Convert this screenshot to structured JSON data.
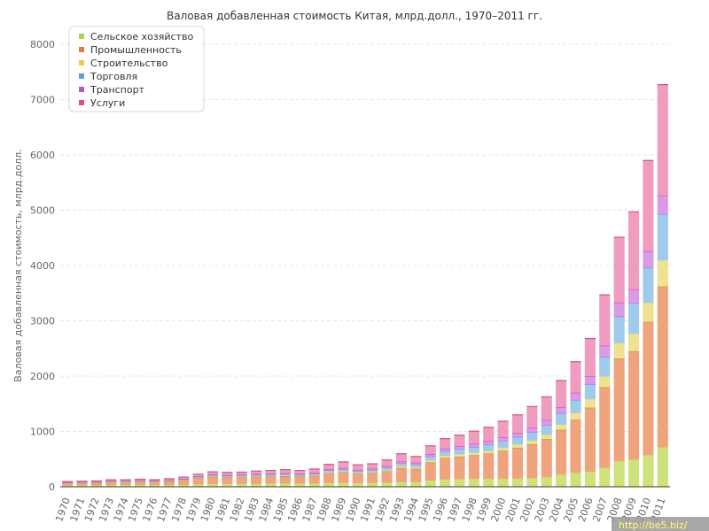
{
  "chart_data": {
    "type": "bar",
    "stacked": true,
    "title": "Валовая добавленная стоимость Китая, млрд.долл., 1970–2011 гг.",
    "ylabel": "Валовая добавленная стоимость, млрд.долл.",
    "xlabel": "",
    "ylim": [
      0,
      8000
    ],
    "yticks": [
      0,
      1000,
      2000,
      3000,
      4000,
      5000,
      6000,
      7000,
      8000
    ],
    "grid": true,
    "legend_position": "top-left",
    "categories": [
      "1970",
      "1971",
      "1972",
      "1973",
      "1974",
      "1975",
      "1976",
      "1977",
      "1978",
      "1979",
      "1980",
      "1981",
      "1982",
      "1983",
      "1984",
      "1985",
      "1986",
      "1987",
      "1988",
      "1989",
      "1990",
      "1991",
      "1992",
      "1993",
      "1994",
      "1995",
      "1996",
      "1997",
      "1998",
      "1999",
      "2000",
      "2001",
      "2002",
      "2003",
      "2004",
      "2005",
      "2006",
      "2007",
      "2008",
      "2009",
      "2010",
      "2011"
    ],
    "series": [
      {
        "name": "Сельское хозяйство",
        "color": "#cde27a",
        "stroke": "#b8cc55",
        "values": [
          30,
          32,
          33,
          37,
          38,
          40,
          39,
          40,
          45,
          55,
          60,
          60,
          62,
          63,
          66,
          67,
          65,
          67,
          75,
          80,
          75,
          78,
          80,
          90,
          95,
          120,
          140,
          145,
          150,
          150,
          150,
          155,
          165,
          180,
          230,
          260,
          280,
          350,
          470,
          500,
          580,
          720
        ]
      },
      {
        "name": "Промышленность",
        "color": "#f0a47d",
        "stroke": "#e07b4a",
        "values": [
          35,
          38,
          40,
          50,
          50,
          55,
          50,
          60,
          75,
          100,
          120,
          110,
          110,
          120,
          120,
          125,
          120,
          130,
          170,
          180,
          160,
          170,
          200,
          250,
          230,
          320,
          380,
          400,
          420,
          450,
          500,
          550,
          600,
          680,
          800,
          950,
          1150,
          1450,
          1850,
          1950,
          2400,
          2900
        ]
      },
      {
        "name": "Строительство",
        "color": "#eee190",
        "stroke": "#e5d04a",
        "values": [
          3,
          3,
          3,
          4,
          4,
          4,
          4,
          5,
          6,
          8,
          10,
          10,
          10,
          12,
          12,
          13,
          13,
          14,
          18,
          20,
          18,
          20,
          25,
          32,
          32,
          40,
          45,
          48,
          50,
          55,
          60,
          65,
          75,
          85,
          100,
          130,
          160,
          200,
          280,
          320,
          350,
          480
        ]
      },
      {
        "name": "Торговля",
        "color": "#9ecbec",
        "stroke": "#5b9fd6",
        "values": [
          8,
          8,
          8,
          10,
          10,
          10,
          10,
          10,
          12,
          15,
          20,
          20,
          22,
          24,
          25,
          27,
          25,
          27,
          35,
          40,
          35,
          38,
          45,
          55,
          50,
          70,
          80,
          90,
          100,
          110,
          120,
          130,
          150,
          170,
          200,
          230,
          260,
          350,
          480,
          550,
          630,
          830
        ]
      },
      {
        "name": "Транспорт",
        "color": "#d99ae8",
        "stroke": "#b855cf",
        "values": [
          4,
          4,
          4,
          5,
          5,
          5,
          5,
          5,
          6,
          8,
          10,
          10,
          10,
          11,
          12,
          12,
          12,
          13,
          17,
          20,
          18,
          20,
          25,
          30,
          30,
          40,
          45,
          50,
          55,
          60,
          65,
          70,
          80,
          90,
          110,
          130,
          150,
          200,
          250,
          250,
          300,
          330
        ]
      },
      {
        "name": "Услуги",
        "color": "#f09cc0",
        "stroke": "#dd4e8a",
        "values": [
          15,
          15,
          17,
          20,
          20,
          22,
          20,
          25,
          30,
          40,
          50,
          50,
          50,
          55,
          60,
          65,
          60,
          70,
          90,
          110,
          90,
          90,
          110,
          140,
          110,
          150,
          180,
          200,
          230,
          250,
          290,
          330,
          380,
          420,
          480,
          560,
          680,
          920,
          1180,
          1400,
          1640,
          2010
        ]
      }
    ]
  },
  "watermark": "http://be5.biz/"
}
